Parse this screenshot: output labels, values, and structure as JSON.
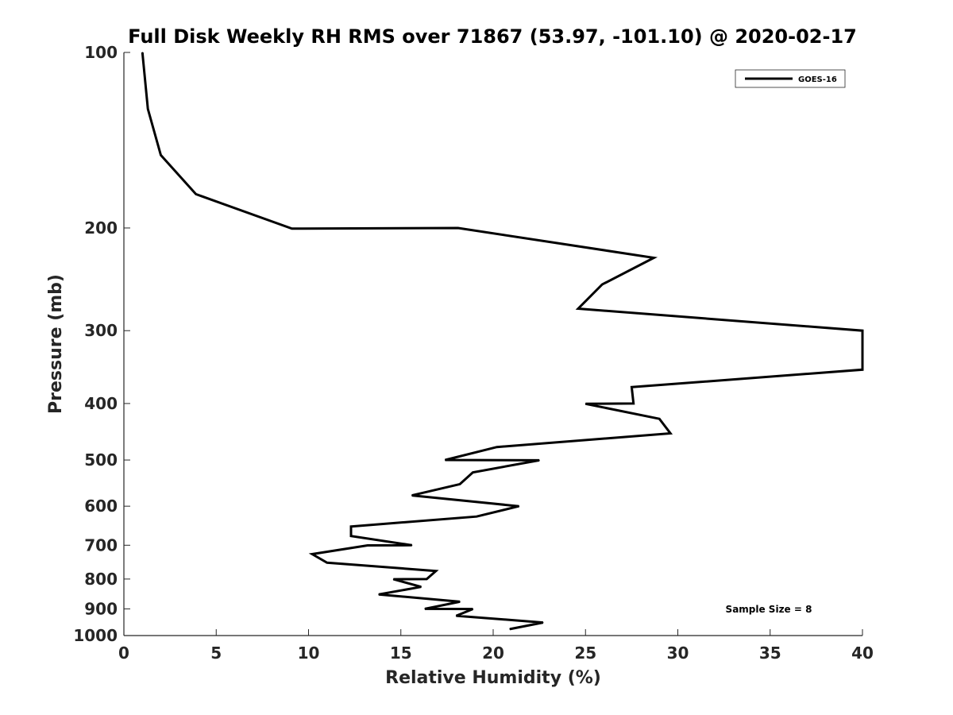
{
  "chart_data": {
    "type": "line",
    "title": "Full Disk Weekly RH RMS over 71867 (53.97, -101.10) @ 2020-02-17",
    "xlabel": "Relative Humidity (%)",
    "ylabel": "Pressure (mb)",
    "xlim": [
      0,
      40
    ],
    "ylim": [
      100,
      1000
    ],
    "y_scale": "log",
    "y_inverted": true,
    "x_ticks": [
      "0",
      "5",
      "10",
      "15",
      "20",
      "25",
      "30",
      "35",
      "40"
    ],
    "y_ticks": [
      "100",
      "200",
      "300",
      "400",
      "500",
      "600",
      "700",
      "800",
      "900",
      "1000"
    ],
    "grid": false,
    "legend": {
      "position": "top-right",
      "entries": [
        "GOES-16"
      ]
    },
    "annotation": "Sample Size = 8",
    "series": [
      {
        "name": "GOES-16",
        "color": "#000000",
        "points": [
          [
            1.0,
            100
          ],
          [
            1.3,
            125
          ],
          [
            2.0,
            150
          ],
          [
            3.9,
            175
          ],
          [
            9.1,
            200.5
          ],
          [
            18.1,
            200
          ],
          [
            28.7,
            225
          ],
          [
            25.9,
            250
          ],
          [
            24.6,
            275
          ],
          [
            40.0,
            300
          ],
          [
            40.0,
            350
          ],
          [
            27.5,
            375
          ],
          [
            27.6,
            400
          ],
          [
            25.0,
            400.5
          ],
          [
            29.0,
            425
          ],
          [
            29.6,
            450
          ],
          [
            20.2,
            475
          ],
          [
            17.4,
            500
          ],
          [
            22.5,
            500.5
          ],
          [
            18.9,
            525
          ],
          [
            18.2,
            550
          ],
          [
            15.6,
            575
          ],
          [
            21.4,
            600
          ],
          [
            21.3,
            601
          ],
          [
            19.1,
            625
          ],
          [
            12.3,
            650
          ],
          [
            12.3,
            675
          ],
          [
            15.6,
            700
          ],
          [
            13.2,
            700.5
          ],
          [
            10.2,
            725
          ],
          [
            11.0,
            750
          ],
          [
            16.9,
            775
          ],
          [
            16.4,
            800
          ],
          [
            14.6,
            800.5
          ],
          [
            16.1,
            825
          ],
          [
            13.8,
            850
          ],
          [
            18.2,
            875
          ],
          [
            16.3,
            900
          ],
          [
            18.9,
            900.5
          ],
          [
            18.0,
            925
          ],
          [
            22.7,
            950
          ],
          [
            20.9,
            975
          ]
        ]
      }
    ]
  }
}
